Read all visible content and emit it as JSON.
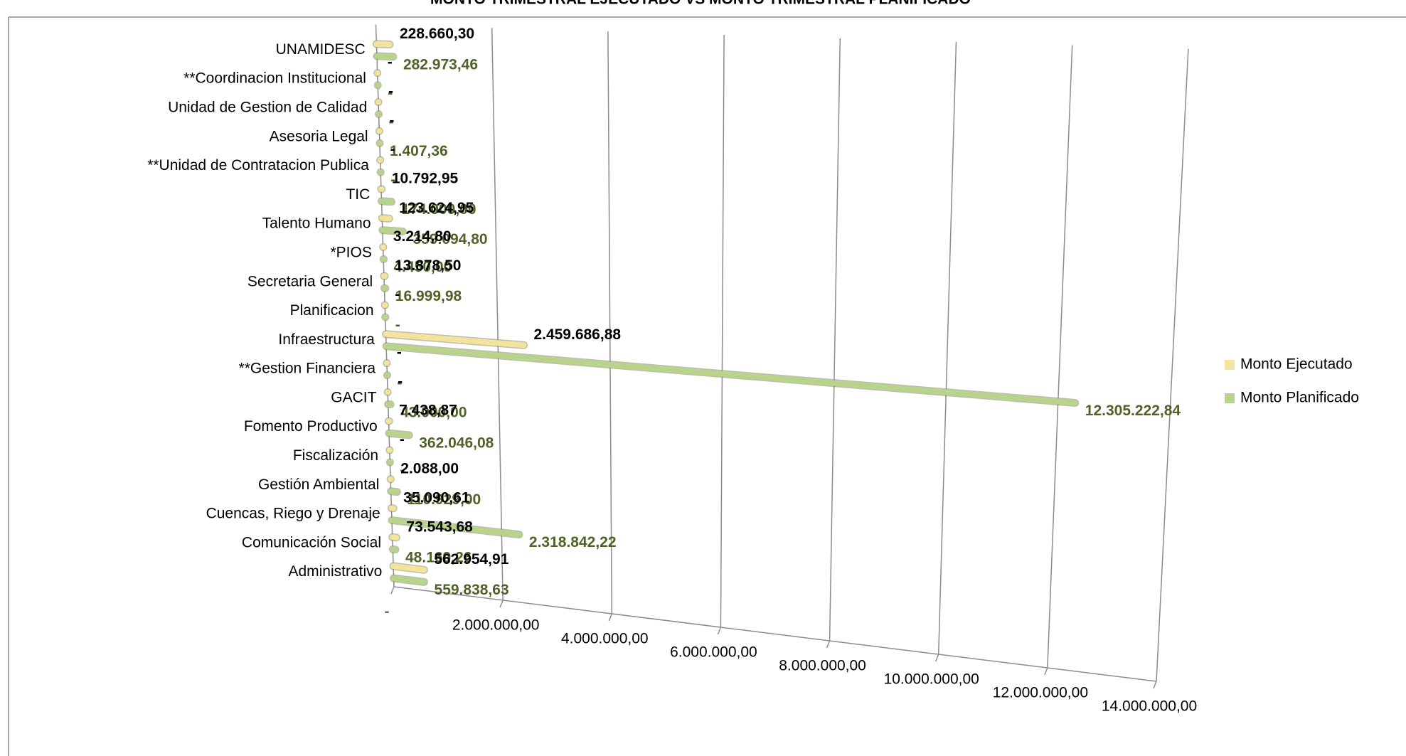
{
  "chart_data": {
    "type": "bar3d",
    "title": "MONTO TRIMESTRAL EJECUTADO VS MONTO TRIMESTRAL PLANIFICADO",
    "categories": [
      "UNAMIDESC",
      "**Coordinacion Institucional",
      "Unidad de Gestion de Calidad",
      "Asesoria Legal",
      "**Unidad de Contratacion Publica",
      "TIC",
      "Talento Humano",
      "*PIOS",
      "Secretaria General",
      "Planificacion",
      "Infraestructura",
      "**Gestion Financiera",
      "GACIT",
      "Fomento Productivo",
      "Fiscalización",
      "Gestión Ambiental",
      "Cuencas, Riego y Drenaje",
      "Comunicación Social",
      "Administrativo"
    ],
    "series": [
      {
        "name": "Monto Ejecutado",
        "color": "#f3e39c",
        "label_color": "#000000",
        "values": [
          228660.3,
          0,
          0,
          0,
          0,
          10792.95,
          123624.95,
          3214.8,
          13878.5,
          0,
          2459686.88,
          0,
          0,
          7438.87,
          0,
          2088.0,
          35090.61,
          73543.68,
          562954.91
        ],
        "value_labels": [
          "228.660,30",
          "-",
          "-",
          "-",
          "-",
          "10.792,95",
          "123.624,95",
          "3.214,80",
          "13.878,50",
          "-",
          "2.459.686,88",
          "-",
          "-",
          "7.438,87",
          "-",
          "2.088,00",
          "35.090,61",
          "73.543,68",
          "562.954,91"
        ]
      },
      {
        "name": "Monto Planificado",
        "color": "#b8d48c",
        "label_color": "#4f6228",
        "values": [
          282973.46,
          0,
          0,
          1407.36,
          0,
          174000.0,
          359094.8,
          4450.0,
          16999.98,
          0,
          12305222.84,
          0,
          43000.0,
          362046.08,
          0,
          110929.0,
          2318842.22,
          48169.26,
          559838.63
        ],
        "value_labels": [
          "282.973,46",
          "-",
          "-",
          "1.407,36",
          "-",
          "174.000,00",
          "359.094,80",
          "4.450,00",
          "16.999,98",
          "-",
          "12.305.222,84",
          "-",
          "43.000,00",
          "362.046,08",
          "-",
          "110.929,00",
          "2.318.842,22",
          "48.169,26",
          "559.838,63"
        ]
      }
    ],
    "xlim": [
      0,
      14000000
    ],
    "xticks": [
      {
        "value": 0,
        "label": "-"
      },
      {
        "value": 2000000,
        "label": "2.000.000,00"
      },
      {
        "value": 4000000,
        "label": "4.000.000,00"
      },
      {
        "value": 6000000,
        "label": "6.000.000,00"
      },
      {
        "value": 8000000,
        "label": "8.000.000,00"
      },
      {
        "value": 10000000,
        "label": "10.000.000,00"
      },
      {
        "value": 12000000,
        "label": "12.000.000,00"
      },
      {
        "value": 14000000,
        "label": "14.000.000,00"
      }
    ],
    "grid": true,
    "legend": "right"
  }
}
